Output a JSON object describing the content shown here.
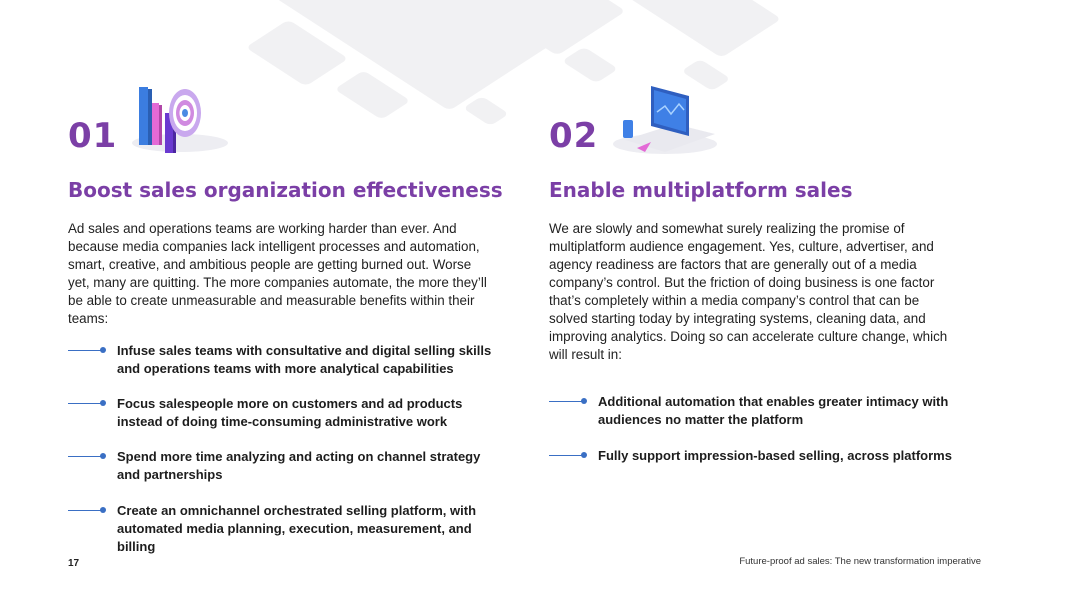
{
  "page_number": "17",
  "footer_text": "Future-proof ad sales: The new transformation imperative",
  "colors": {
    "accent_purple": "#7b3fa6",
    "bullet_blue": "#3a6fc4"
  },
  "left": {
    "number": "01",
    "icon": "target-bar-chart-icon",
    "heading": "Boost sales organization effectiveness",
    "body": "Ad sales and operations teams are working harder than ever. And because media companies lack intelligent processes and automation, smart, creative, and ambitious people are getting burned out. Worse yet, many are quitting. The more companies automate, the more they’ll be able to create unmeasurable and measurable benefits within their teams:",
    "bullets": [
      "Infuse sales teams with consultative and digital selling skills and operations teams with more analytical capabilities",
      "Focus salespeople more on customers and ad products instead of doing time-consuming administrative work",
      "Spend more time analyzing and acting on channel strategy and partnerships",
      "Create an omnichannel orchestrated selling platform, with automated media planning, execution, measurement, and billing"
    ]
  },
  "right": {
    "number": "02",
    "icon": "laptop-multiplatform-icon",
    "heading": "Enable multiplatform sales",
    "body": "We are slowly and somewhat surely realizing the promise of multiplatform audience engagement. Yes, culture, advertiser, and agency readiness are factors that are generally out of a media company’s control. But the friction of doing business is one factor that’s completely within a media company’s control that can be solved starting today by integrating systems, cleaning data, and improving analytics. Doing so can accelerate culture change, which will result in:",
    "bullets": [
      "Additional automation that enables greater intimacy with audiences no matter the platform",
      "Fully support impression-based selling, across platforms"
    ]
  }
}
